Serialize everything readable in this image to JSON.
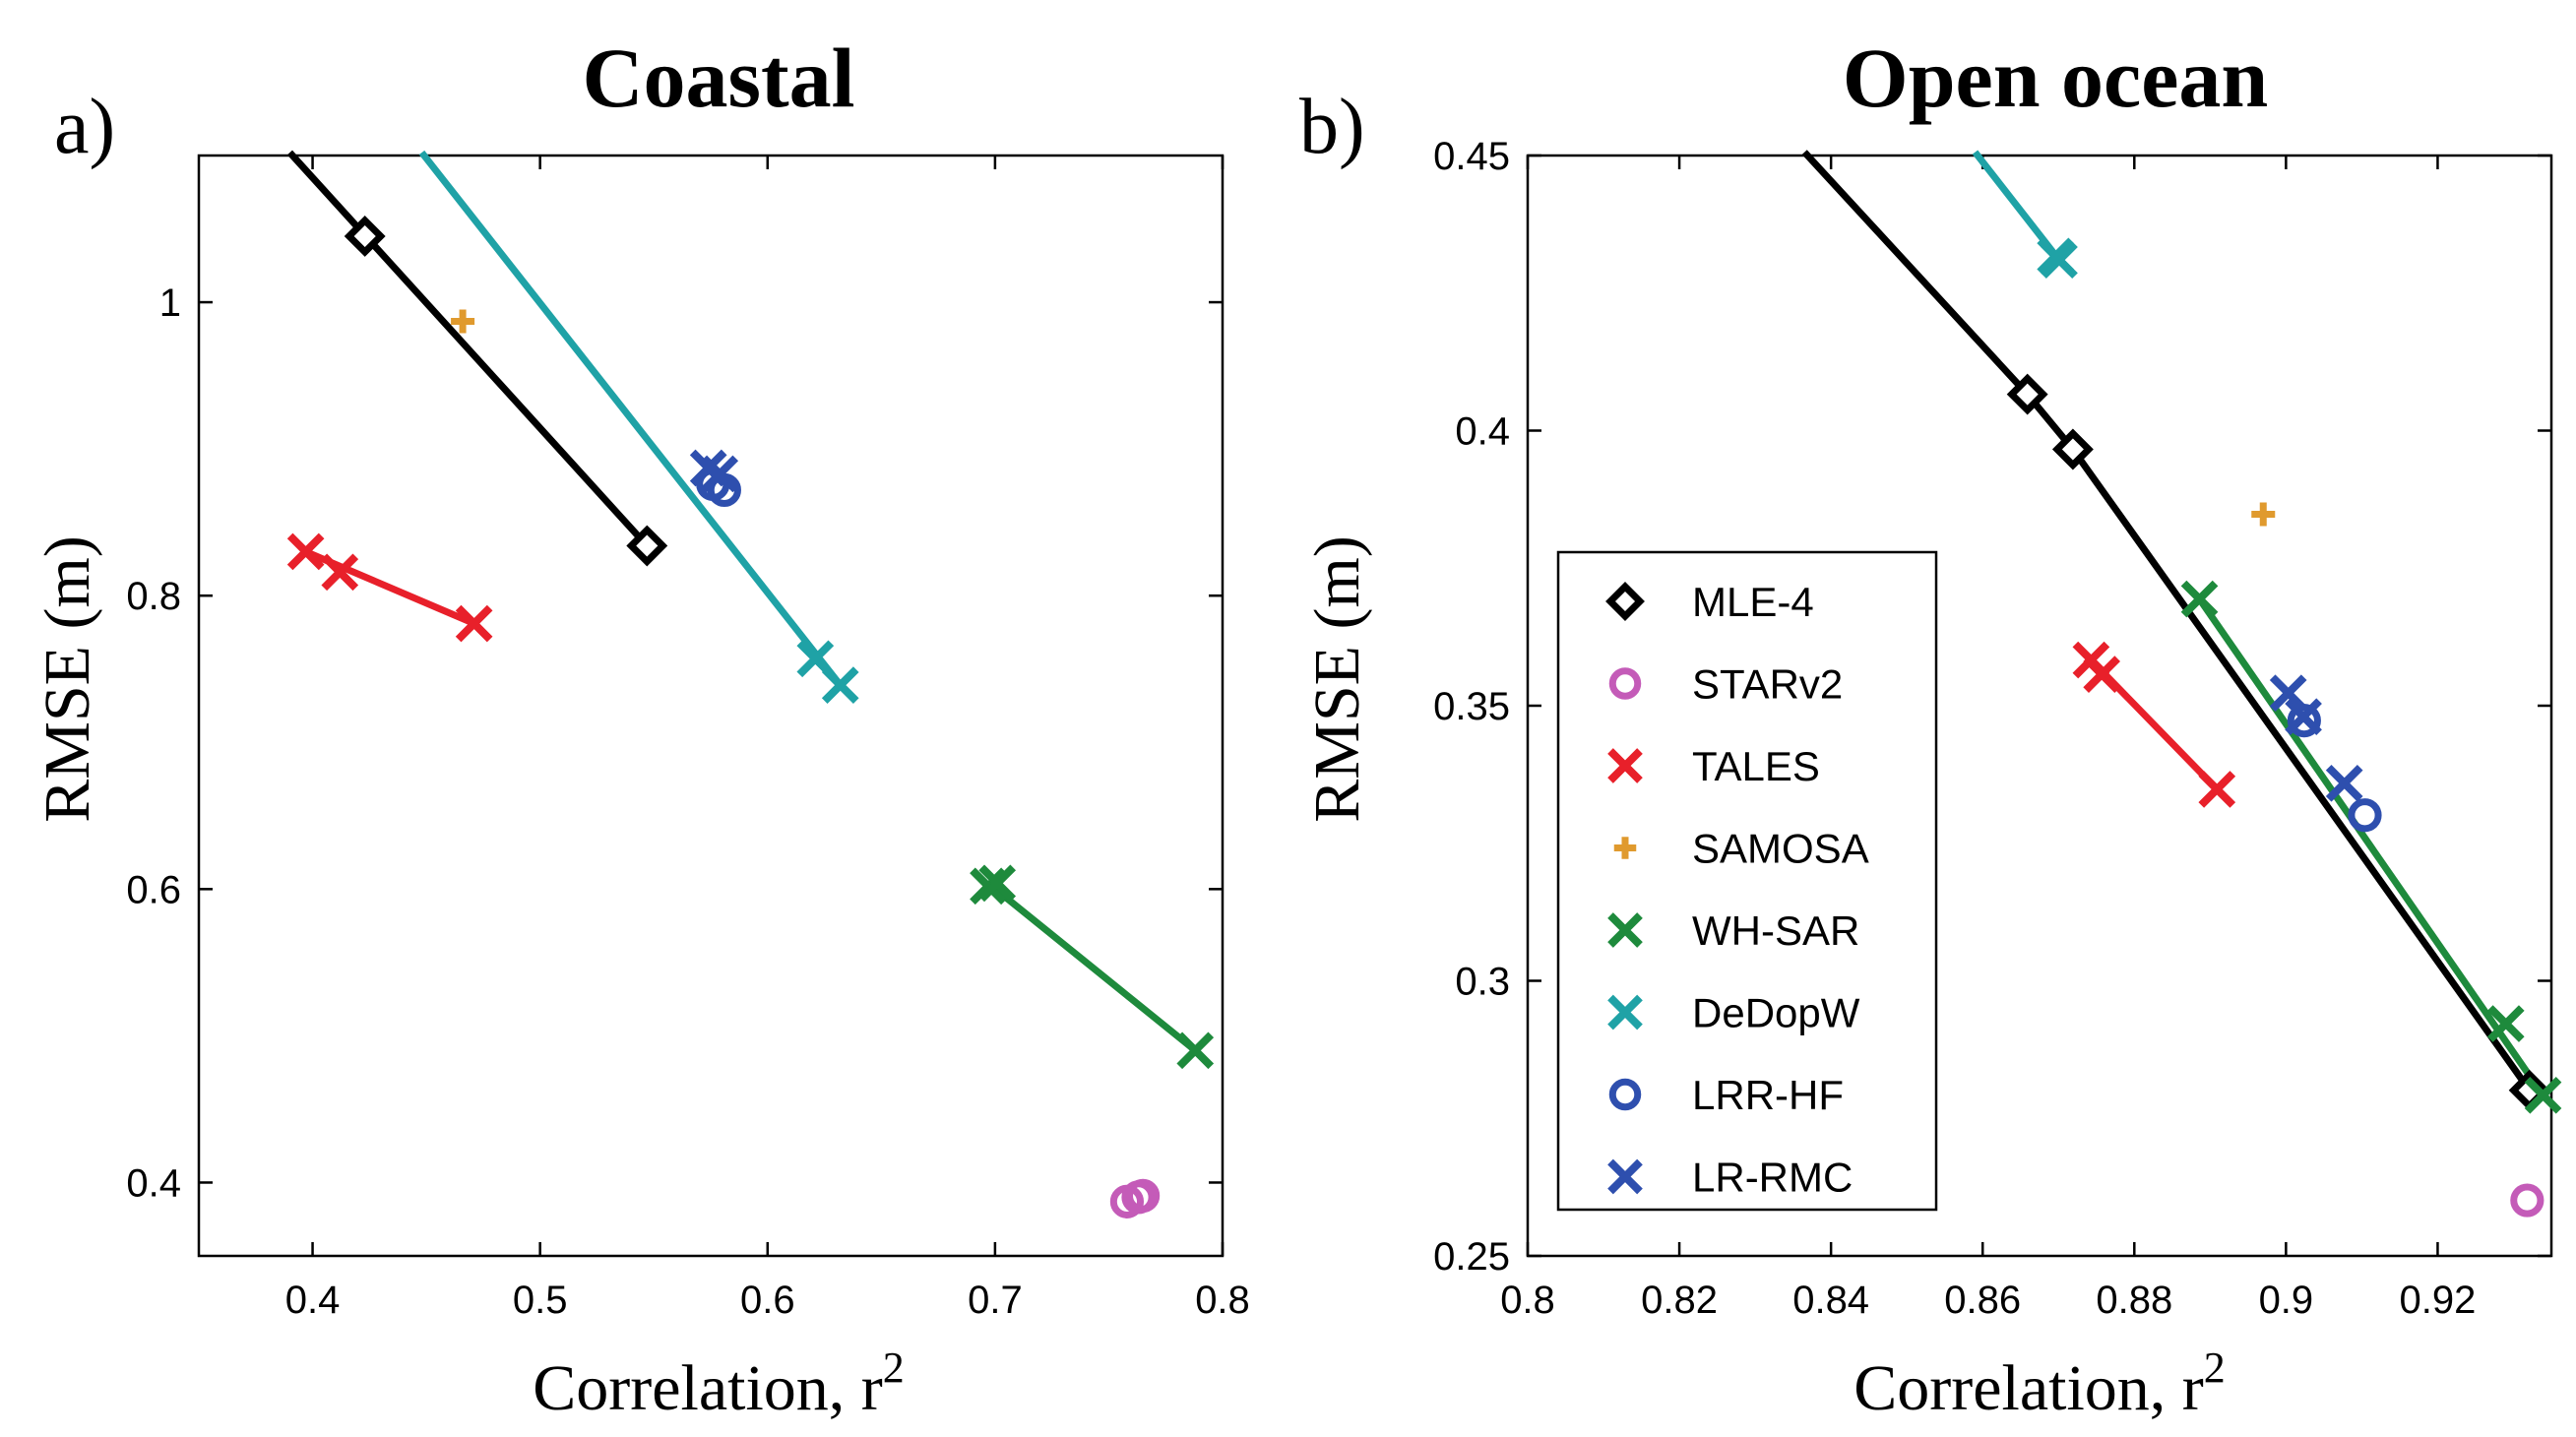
{
  "chart_data": [
    {
      "panel_label": "a)",
      "type": "scatter",
      "title": "Coastal",
      "xlabel": "Correlation, r",
      "xlabel_sup": "2",
      "ylabel": "RMSE (m)",
      "xlim": [
        0.35,
        0.8
      ],
      "ylim": [
        0.35,
        1.1
      ],
      "xticks": [
        "0.4",
        "0.5",
        "0.6",
        "0.7",
        "0.8"
      ],
      "xtick_values": [
        0.4,
        0.5,
        0.6,
        0.7,
        0.8
      ],
      "yticks": [
        "0.4",
        "0.6",
        "0.8",
        "1"
      ],
      "ytick_values": [
        0.4,
        0.6,
        0.8,
        1.0
      ],
      "grid": false,
      "series": [
        {
          "name": "MLE-4",
          "color": "#000000",
          "marker": "diamond",
          "points": [
            [
              0.423,
              1.045
            ],
            [
              0.547,
              0.834
            ]
          ],
          "line": [
            [
              0.39,
              1.102
            ],
            [
              0.547,
              0.834
            ]
          ]
        },
        {
          "name": "STARv2",
          "color": "#C45BB8",
          "marker": "circle",
          "points": [
            [
              0.758,
              0.387
            ],
            [
              0.763,
              0.39
            ],
            [
              0.765,
              0.391
            ]
          ],
          "line": null
        },
        {
          "name": "TALES",
          "color": "#E8202A",
          "marker": "x",
          "points": [
            [
              0.397,
              0.83
            ],
            [
              0.412,
              0.816
            ],
            [
              0.471,
              0.781
            ]
          ],
          "line": [
            [
              0.397,
              0.83
            ],
            [
              0.471,
              0.781
            ]
          ]
        },
        {
          "name": "SAMOSA",
          "color": "#E09A2E",
          "marker": "plus",
          "points": [
            [
              0.466,
              0.987
            ]
          ],
          "line": null
        },
        {
          "name": "WH-SAR",
          "color": "#1E8A3C",
          "marker": "x",
          "points": [
            [
              0.697,
              0.602
            ],
            [
              0.701,
              0.604
            ],
            [
              0.788,
              0.49
            ]
          ],
          "line": [
            [
              0.697,
              0.604
            ],
            [
              0.788,
              0.49
            ]
          ]
        },
        {
          "name": "DeDopW",
          "color": "#1FA2A6",
          "marker": "x",
          "points": [
            [
              0.621,
              0.757
            ],
            [
              0.632,
              0.739
            ]
          ],
          "line": [
            [
              0.448,
              1.102
            ],
            [
              0.632,
              0.739
            ]
          ]
        },
        {
          "name": "LRR-HF",
          "color": "#2E4FAE",
          "marker": "circle",
          "points": [
            [
              0.576,
              0.876
            ],
            [
              0.581,
              0.872
            ]
          ],
          "line": null
        },
        {
          "name": "LR-RMC",
          "color": "#2E4FAE",
          "marker": "x",
          "points": [
            [
              0.574,
              0.887
            ],
            [
              0.579,
              0.883
            ]
          ],
          "line": null
        }
      ]
    },
    {
      "panel_label": "b)",
      "type": "scatter",
      "title": "Open ocean",
      "xlabel": "Correlation, r",
      "xlabel_sup": "2",
      "ylabel": "RMSE (m)",
      "xlim": [
        0.8,
        0.935
      ],
      "ylim": [
        0.25,
        0.45
      ],
      "xticks": [
        "0.8",
        "0.82",
        "0.84",
        "0.86",
        "0.88",
        "0.9",
        "0.92"
      ],
      "xtick_values": [
        0.8,
        0.82,
        0.84,
        0.86,
        0.88,
        0.9,
        0.92
      ],
      "yticks": [
        "0.25",
        "0.3",
        "0.35",
        "0.4",
        "0.45"
      ],
      "ytick_values": [
        0.25,
        0.3,
        0.35,
        0.4,
        0.45
      ],
      "grid": false,
      "legend_position": "center-left",
      "series": [
        {
          "name": "MLE-4",
          "color": "#000000",
          "marker": "diamond",
          "points": [
            [
              0.8659,
              0.4066
            ],
            [
              0.8719,
              0.3966
            ],
            [
              0.9321,
              0.2801
            ]
          ],
          "line": [
            [
              0.8365,
              0.4506
            ],
            [
              0.8659,
              0.4066
            ],
            [
              0.8719,
              0.3966
            ],
            [
              0.9321,
              0.2801
            ]
          ]
        },
        {
          "name": "STARv2",
          "color": "#C45BB8",
          "marker": "circle",
          "points": [
            [
              0.9318,
              0.2601
            ]
          ],
          "line": null
        },
        {
          "name": "TALES",
          "color": "#E8202A",
          "marker": "x",
          "points": [
            [
              0.8743,
              0.3583
            ],
            [
              0.8757,
              0.3557
            ],
            [
              0.8909,
              0.3348
            ]
          ],
          "line": [
            [
              0.8743,
              0.3583
            ],
            [
              0.8909,
              0.3348
            ]
          ]
        },
        {
          "name": "SAMOSA",
          "color": "#E09A2E",
          "marker": "plus",
          "points": [
            [
              0.897,
              0.3848
            ]
          ],
          "line": null
        },
        {
          "name": "WH-SAR",
          "color": "#1E8A3C",
          "marker": "x",
          "points": [
            [
              0.8886,
              0.3694
            ],
            [
              0.929,
              0.2922
            ],
            [
              0.9339,
              0.2792
            ]
          ],
          "line": [
            [
              0.8886,
              0.3694
            ],
            [
              0.9339,
              0.2792
            ]
          ]
        },
        {
          "name": "DeDopW",
          "color": "#1FA2A6",
          "marker": "x",
          "points": [
            [
              0.8696,
              0.4317
            ],
            [
              0.8701,
              0.431
            ]
          ],
          "line": [
            [
              0.859,
              0.4506
            ],
            [
              0.8701,
              0.431
            ]
          ]
        },
        {
          "name": "LRR-HF",
          "color": "#2E4FAE",
          "marker": "circle",
          "points": [
            [
              0.9024,
              0.3473
            ],
            [
              0.9104,
              0.3301
            ]
          ],
          "line": null
        },
        {
          "name": "LR-RMC",
          "color": "#2E4FAE",
          "marker": "x",
          "points": [
            [
              0.9003,
              0.3523
            ],
            [
              0.9023,
              0.348
            ],
            [
              0.9077,
              0.3359
            ]
          ],
          "line": null
        }
      ]
    }
  ]
}
